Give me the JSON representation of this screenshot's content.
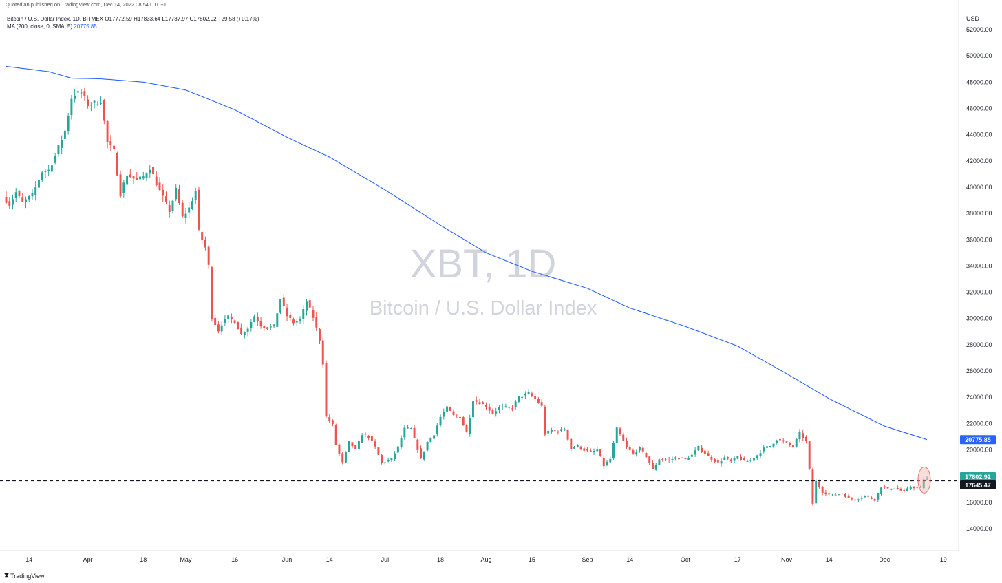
{
  "header": {
    "published": "Quotedian published on TradingView.com, Dec 14, 2022 08:54 UTC+1",
    "ohlc": "Bitcoin / U.S. Dollar Index, 1D, BITMEX  O17772.59  H17833.64  L17737.97  C17802.92  +29.58 (+0.17%)",
    "ma_label": "MA (200, close, 0, SMA, 5)",
    "ma_value": "20775.85"
  },
  "watermark": {
    "line1": "XBT, 1D",
    "line2": "Bitcoin / U.S. Dollar Index"
  },
  "footer": {
    "brand": "TradingView",
    "logo": "tradingview-logo-icon"
  },
  "colors": {
    "up": "#26a69a",
    "down": "#ef5350",
    "ma": "#2962ff",
    "text": "#131722",
    "watermark": "#d1d4dc",
    "highlight": "#f7b4b0"
  },
  "chart_data": {
    "type": "candlestick",
    "title": "XBT, 1D",
    "currency": "USD",
    "ylim": [
      12500,
      53500
    ],
    "y_ticks": [
      "52000.00",
      "50000.00",
      "48000.00",
      "46000.00",
      "44000.00",
      "42000.00",
      "40000.00",
      "38000.00",
      "36000.00",
      "34000.00",
      "32000.00",
      "30000.00",
      "28000.00",
      "26000.00",
      "24000.00",
      "22000.00",
      "20000.00",
      "16000.00",
      "14000.00"
    ],
    "x_ticks": [
      {
        "label": "14",
        "date": "2022-03-14"
      },
      {
        "label": "Apr",
        "date": "2022-04-01"
      },
      {
        "label": "18",
        "date": "2022-04-18"
      },
      {
        "label": "May",
        "date": "2022-05-01"
      },
      {
        "label": "16",
        "date": "2022-05-16"
      },
      {
        "label": "Jun",
        "date": "2022-06-01"
      },
      {
        "label": "14",
        "date": "2022-06-14"
      },
      {
        "label": "Jul",
        "date": "2022-07-01"
      },
      {
        "label": "18",
        "date": "2022-07-18"
      },
      {
        "label": "Aug",
        "date": "2022-08-01"
      },
      {
        "label": "15",
        "date": "2022-08-15"
      },
      {
        "label": "Sep",
        "date": "2022-09-01"
      },
      {
        "label": "14",
        "date": "2022-09-14"
      },
      {
        "label": "Oct",
        "date": "2022-10-01"
      },
      {
        "label": "17",
        "date": "2022-10-17"
      },
      {
        "label": "Nov",
        "date": "2022-11-01"
      },
      {
        "label": "14",
        "date": "2022-11-14"
      },
      {
        "label": "Dec",
        "date": "2022-12-01"
      },
      {
        "label": "19",
        "date": "2022-12-19"
      }
    ],
    "price_labels": [
      {
        "text": "20775.85",
        "value": 20775.85,
        "color": "#2962ff"
      },
      {
        "text": "17802.92",
        "value": 17802.92,
        "color": "#26a69a"
      },
      {
        "text": "17645.47",
        "value": 17645.47,
        "color": "#131722"
      }
    ],
    "horizontal_line": 17645.47,
    "highlight_price": 17700,
    "close_anchors": [
      [
        "2022-03-07",
        39000
      ],
      [
        "2022-03-08",
        38700
      ],
      [
        "2022-03-10",
        39600
      ],
      [
        "2022-03-12",
        38800
      ],
      [
        "2022-03-15",
        39400
      ],
      [
        "2022-03-18",
        41200
      ],
      [
        "2022-03-20",
        41300
      ],
      [
        "2022-03-22",
        42400
      ],
      [
        "2022-03-25",
        44300
      ],
      [
        "2022-03-27",
        46800
      ],
      [
        "2022-03-28",
        47100
      ],
      [
        "2022-03-30",
        47200
      ],
      [
        "2022-04-01",
        46300
      ],
      [
        "2022-04-03",
        46400
      ],
      [
        "2022-04-05",
        46600
      ],
      [
        "2022-04-07",
        43400
      ],
      [
        "2022-04-09",
        42700
      ],
      [
        "2022-04-11",
        39500
      ],
      [
        "2022-04-13",
        41000
      ],
      [
        "2022-04-16",
        40500
      ],
      [
        "2022-04-18",
        40800
      ],
      [
        "2022-04-20",
        41500
      ],
      [
        "2022-04-23",
        39700
      ],
      [
        "2022-04-26",
        38200
      ],
      [
        "2022-04-28",
        39800
      ],
      [
        "2022-04-30",
        37700
      ],
      [
        "2022-05-02",
        38400
      ],
      [
        "2022-05-04",
        39700
      ],
      [
        "2022-05-05",
        36600
      ],
      [
        "2022-05-07",
        35400
      ],
      [
        "2022-05-08",
        34000
      ],
      [
        "2022-05-09",
        30100
      ],
      [
        "2022-05-11",
        29100
      ],
      [
        "2022-05-12",
        29600
      ],
      [
        "2022-05-14",
        30100
      ],
      [
        "2022-05-16",
        29800
      ],
      [
        "2022-05-18",
        28800
      ],
      [
        "2022-05-20",
        29300
      ],
      [
        "2022-05-22",
        30200
      ],
      [
        "2022-05-24",
        29500
      ],
      [
        "2022-05-26",
        29300
      ],
      [
        "2022-05-28",
        29400
      ],
      [
        "2022-05-30",
        31500
      ],
      [
        "2022-06-01",
        30200
      ],
      [
        "2022-06-03",
        29700
      ],
      [
        "2022-06-05",
        29900
      ],
      [
        "2022-06-07",
        31300
      ],
      [
        "2022-06-09",
        30100
      ],
      [
        "2022-06-11",
        28400
      ],
      [
        "2022-06-12",
        26600
      ],
      [
        "2022-06-13",
        22500
      ],
      [
        "2022-06-15",
        21900
      ],
      [
        "2022-06-16",
        20400
      ],
      [
        "2022-06-18",
        19000
      ],
      [
        "2022-06-20",
        20600
      ],
      [
        "2022-06-22",
        20000
      ],
      [
        "2022-06-24",
        21200
      ],
      [
        "2022-06-26",
        21000
      ],
      [
        "2022-06-28",
        20200
      ],
      [
        "2022-06-30",
        19000
      ],
      [
        "2022-07-03",
        19300
      ],
      [
        "2022-07-05",
        20200
      ],
      [
        "2022-07-07",
        21600
      ],
      [
        "2022-07-09",
        21600
      ],
      [
        "2022-07-12",
        19300
      ],
      [
        "2022-07-14",
        20600
      ],
      [
        "2022-07-16",
        21200
      ],
      [
        "2022-07-18",
        22500
      ],
      [
        "2022-07-20",
        23200
      ],
      [
        "2022-07-22",
        22600
      ],
      [
        "2022-07-24",
        22500
      ],
      [
        "2022-07-26",
        21300
      ],
      [
        "2022-07-28",
        23800
      ],
      [
        "2022-07-30",
        23600
      ],
      [
        "2022-08-01",
        23300
      ],
      [
        "2022-08-03",
        22800
      ],
      [
        "2022-08-05",
        23200
      ],
      [
        "2022-08-07",
        23200
      ],
      [
        "2022-08-09",
        23200
      ],
      [
        "2022-08-11",
        24000
      ],
      [
        "2022-08-14",
        24300
      ],
      [
        "2022-08-16",
        23900
      ],
      [
        "2022-08-18",
        23300
      ],
      [
        "2022-08-19",
        21200
      ],
      [
        "2022-08-21",
        21500
      ],
      [
        "2022-08-23",
        21400
      ],
      [
        "2022-08-25",
        21600
      ],
      [
        "2022-08-27",
        20100
      ],
      [
        "2022-08-29",
        20300
      ],
      [
        "2022-08-31",
        20000
      ],
      [
        "2022-09-02",
        19800
      ],
      [
        "2022-09-04",
        20000
      ],
      [
        "2022-09-06",
        18800
      ],
      [
        "2022-09-08",
        19300
      ],
      [
        "2022-09-10",
        21600
      ],
      [
        "2022-09-13",
        20200
      ],
      [
        "2022-09-15",
        19700
      ],
      [
        "2022-09-17",
        20100
      ],
      [
        "2022-09-19",
        19500
      ],
      [
        "2022-09-21",
        18500
      ],
      [
        "2022-09-23",
        19300
      ],
      [
        "2022-09-26",
        19200
      ],
      [
        "2022-09-28",
        19400
      ],
      [
        "2022-10-01",
        19300
      ],
      [
        "2022-10-03",
        19600
      ],
      [
        "2022-10-05",
        20200
      ],
      [
        "2022-10-08",
        19500
      ],
      [
        "2022-10-11",
        19000
      ],
      [
        "2022-10-13",
        19400
      ],
      [
        "2022-10-15",
        19100
      ],
      [
        "2022-10-17",
        19500
      ],
      [
        "2022-10-19",
        19100
      ],
      [
        "2022-10-21",
        19200
      ],
      [
        "2022-10-23",
        19600
      ],
      [
        "2022-10-25",
        20100
      ],
      [
        "2022-10-27",
        20300
      ],
      [
        "2022-10-29",
        20800
      ],
      [
        "2022-11-01",
        20500
      ],
      [
        "2022-11-03",
        20200
      ],
      [
        "2022-11-05",
        21300
      ],
      [
        "2022-11-07",
        20600
      ],
      [
        "2022-11-08",
        18500
      ],
      [
        "2022-11-09",
        15900
      ],
      [
        "2022-11-10",
        17600
      ],
      [
        "2022-11-12",
        16800
      ],
      [
        "2022-11-14",
        16600
      ],
      [
        "2022-11-16",
        16600
      ],
      [
        "2022-11-18",
        16700
      ],
      [
        "2022-11-20",
        16300
      ],
      [
        "2022-11-22",
        16200
      ],
      [
        "2022-11-25",
        16500
      ],
      [
        "2022-11-28",
        16200
      ],
      [
        "2022-11-30",
        17200
      ],
      [
        "2022-12-02",
        17000
      ],
      [
        "2022-12-04",
        17100
      ],
      [
        "2022-12-07",
        16800
      ],
      [
        "2022-12-09",
        17200
      ],
      [
        "2022-12-11",
        17100
      ],
      [
        "2022-12-12",
        17100
      ],
      [
        "2022-12-13",
        17770
      ],
      [
        "2022-12-14",
        17802.92
      ]
    ],
    "ma_anchors": [
      [
        "2022-03-07",
        49200
      ],
      [
        "2022-03-20",
        48800
      ],
      [
        "2022-03-27",
        48300
      ],
      [
        "2022-04-05",
        48250
      ],
      [
        "2022-04-18",
        48000
      ],
      [
        "2022-05-01",
        47400
      ],
      [
        "2022-05-16",
        45900
      ],
      [
        "2022-06-01",
        43800
      ],
      [
        "2022-06-14",
        42300
      ],
      [
        "2022-07-01",
        39800
      ],
      [
        "2022-07-18",
        37100
      ],
      [
        "2022-08-01",
        35000
      ],
      [
        "2022-08-15",
        33600
      ],
      [
        "2022-09-01",
        32300
      ],
      [
        "2022-09-14",
        30800
      ],
      [
        "2022-10-01",
        29400
      ],
      [
        "2022-10-17",
        27900
      ],
      [
        "2022-11-01",
        25800
      ],
      [
        "2022-11-14",
        23900
      ],
      [
        "2022-12-01",
        21800
      ],
      [
        "2022-12-14",
        20775.85
      ]
    ]
  }
}
